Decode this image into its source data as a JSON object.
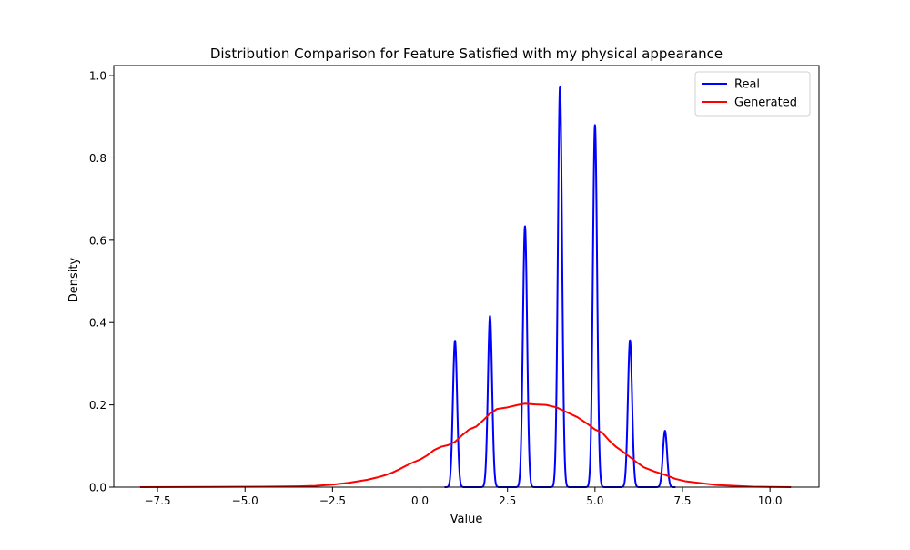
{
  "chart_data": {
    "type": "line",
    "title": "Distribution Comparison for Feature Satisfied with my physical appearance",
    "xlabel": "Value",
    "ylabel": "Density",
    "xlim": [
      -8.75,
      11.4
    ],
    "ylim": [
      0,
      1.0245
    ],
    "xticks": [
      -7.5,
      -5.0,
      -2.5,
      0.0,
      2.5,
      5.0,
      7.5,
      10.0
    ],
    "xtick_labels": [
      "−7.5",
      "−5.0",
      "−2.5",
      "0.0",
      "2.5",
      "5.0",
      "7.5",
      "10.0"
    ],
    "yticks": [
      0.0,
      0.2,
      0.4,
      0.6,
      0.8,
      1.0
    ],
    "ytick_labels": [
      "0.0",
      "0.2",
      "0.4",
      "0.6",
      "0.8",
      "1.0"
    ],
    "grid": false,
    "legend_position": "top-right",
    "series": [
      {
        "name": "Real",
        "color": "#0000ff",
        "kind": "kde-peaks",
        "x_range": [
          0.7,
          7.3
        ],
        "peaks": [
          {
            "x": 1,
            "y": 0.356
          },
          {
            "x": 2,
            "y": 0.416
          },
          {
            "x": 3,
            "y": 0.634
          },
          {
            "x": 4,
            "y": 0.974
          },
          {
            "x": 5,
            "y": 0.88
          },
          {
            "x": 6,
            "y": 0.357
          },
          {
            "x": 7,
            "y": 0.137
          }
        ],
        "peak_sigma": 0.06
      },
      {
        "name": "Generated",
        "color": "#ff0000",
        "kind": "points",
        "x": [
          -8.0,
          -6.0,
          -4.5,
          -3.5,
          -3.0,
          -2.5,
          -2.0,
          -1.5,
          -1.2,
          -1.0,
          -0.8,
          -0.6,
          -0.4,
          -0.2,
          0.0,
          0.2,
          0.4,
          0.6,
          0.8,
          1.0,
          1.2,
          1.4,
          1.6,
          1.8,
          2.0,
          2.2,
          2.5,
          2.8,
          3.0,
          3.3,
          3.6,
          3.9,
          4.2,
          4.5,
          4.8,
          5.0,
          5.2,
          5.4,
          5.6,
          5.8,
          6.0,
          6.2,
          6.4,
          6.7,
          7.0,
          7.3,
          7.6,
          8.0,
          8.5,
          9.0,
          9.5,
          10.0,
          10.6
        ],
        "y": [
          0.0,
          0.0005,
          0.001,
          0.002,
          0.003,
          0.006,
          0.011,
          0.018,
          0.024,
          0.029,
          0.035,
          0.043,
          0.052,
          0.06,
          0.067,
          0.077,
          0.09,
          0.098,
          0.102,
          0.11,
          0.126,
          0.14,
          0.147,
          0.162,
          0.179,
          0.19,
          0.194,
          0.2,
          0.203,
          0.201,
          0.2,
          0.194,
          0.182,
          0.17,
          0.153,
          0.14,
          0.133,
          0.114,
          0.098,
          0.086,
          0.073,
          0.06,
          0.048,
          0.038,
          0.03,
          0.02,
          0.014,
          0.01,
          0.005,
          0.003,
          0.001,
          0.0005,
          0.0
        ]
      }
    ]
  }
}
